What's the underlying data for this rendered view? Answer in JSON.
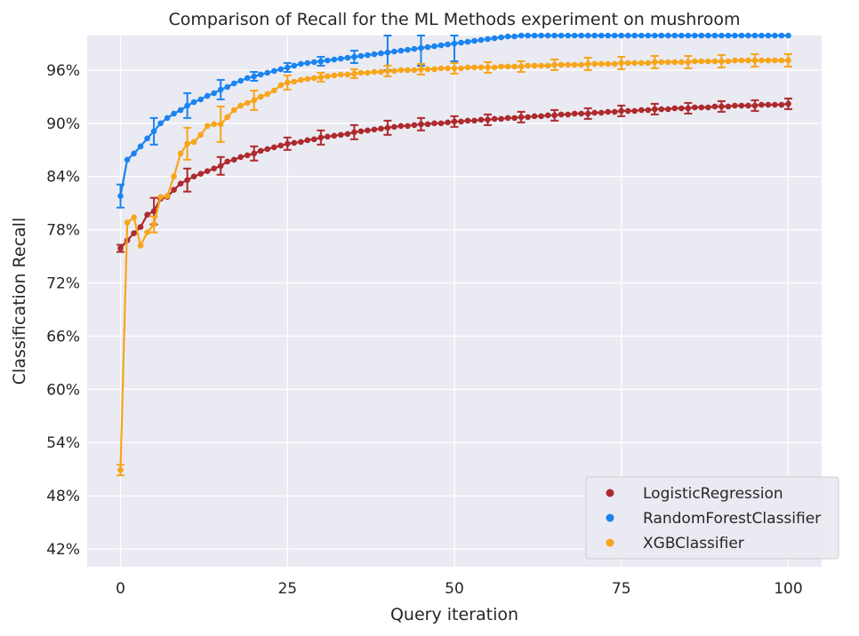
{
  "chart_data": {
    "type": "line",
    "title": "Comparison of Recall for the ML Methods experiment on mushroom",
    "xlabel": "Query iteration",
    "ylabel": "Classification Recall",
    "xlim": [
      -5,
      105
    ],
    "ylim": [
      0.4,
      0.999
    ],
    "xticks": [
      0,
      25,
      50,
      75,
      100
    ],
    "xtick_labels": [
      "0",
      "25",
      "50",
      "75",
      "100"
    ],
    "yticks": [
      0.42,
      0.48,
      0.54,
      0.6,
      0.66,
      0.72,
      0.78,
      0.84,
      0.9,
      0.96
    ],
    "ytick_labels": [
      "42%",
      "48%",
      "54%",
      "60%",
      "66%",
      "72%",
      "78%",
      "84%",
      "90%",
      "96%"
    ],
    "grid": true,
    "legend_position": "bottom-right",
    "x": [
      0,
      1,
      2,
      3,
      4,
      5,
      6,
      7,
      8,
      9,
      10,
      11,
      12,
      13,
      14,
      15,
      16,
      17,
      18,
      19,
      20,
      21,
      22,
      23,
      24,
      25,
      26,
      27,
      28,
      29,
      30,
      31,
      32,
      33,
      34,
      35,
      36,
      37,
      38,
      39,
      40,
      41,
      42,
      43,
      44,
      45,
      46,
      47,
      48,
      49,
      50,
      51,
      52,
      53,
      54,
      55,
      56,
      57,
      58,
      59,
      60,
      61,
      62,
      63,
      64,
      65,
      66,
      67,
      68,
      69,
      70,
      71,
      72,
      73,
      74,
      75,
      76,
      77,
      78,
      79,
      80,
      81,
      82,
      83,
      84,
      85,
      86,
      87,
      88,
      89,
      90,
      91,
      92,
      93,
      94,
      95,
      96,
      97,
      98,
      99,
      100
    ],
    "series": [
      {
        "name": "LogisticRegression",
        "color": "#ad2a2d",
        "values": [
          0.759,
          0.768,
          0.776,
          0.783,
          0.797,
          0.801,
          0.815,
          0.817,
          0.825,
          0.832,
          0.836,
          0.84,
          0.843,
          0.846,
          0.849,
          0.852,
          0.857,
          0.859,
          0.862,
          0.864,
          0.866,
          0.869,
          0.871,
          0.873,
          0.875,
          0.877,
          0.878,
          0.879,
          0.881,
          0.882,
          0.884,
          0.885,
          0.886,
          0.887,
          0.888,
          0.89,
          0.891,
          0.892,
          0.893,
          0.894,
          0.895,
          0.896,
          0.897,
          0.897,
          0.898,
          0.899,
          0.899,
          0.9,
          0.9,
          0.901,
          0.902,
          0.902,
          0.903,
          0.903,
          0.904,
          0.904,
          0.905,
          0.905,
          0.906,
          0.906,
          0.907,
          0.907,
          0.908,
          0.908,
          0.909,
          0.909,
          0.91,
          0.91,
          0.911,
          0.911,
          0.911,
          0.912,
          0.912,
          0.913,
          0.913,
          0.914,
          0.914,
          0.914,
          0.915,
          0.915,
          0.916,
          0.916,
          0.916,
          0.917,
          0.917,
          0.917,
          0.918,
          0.918,
          0.918,
          0.919,
          0.919,
          0.919,
          0.92,
          0.92,
          0.92,
          0.92,
          0.921,
          0.921,
          0.921,
          0.921,
          0.922
        ],
        "errors": {
          "0": 0.004,
          "5": 0.015,
          "10": 0.013,
          "15": 0.01,
          "20": 0.008,
          "25": 0.007,
          "30": 0.008,
          "35": 0.008,
          "40": 0.008,
          "45": 0.007,
          "50": 0.006,
          "55": 0.006,
          "60": 0.006,
          "65": 0.006,
          "70": 0.006,
          "75": 0.006,
          "80": 0.006,
          "85": 0.006,
          "90": 0.006,
          "95": 0.006,
          "100": 0.006
        }
      },
      {
        "name": "RandomForestClassifier",
        "color": "#1a84f0",
        "values": [
          0.818,
          0.859,
          0.866,
          0.874,
          0.883,
          0.891,
          0.9,
          0.906,
          0.911,
          0.915,
          0.92,
          0.924,
          0.927,
          0.931,
          0.934,
          0.938,
          0.941,
          0.945,
          0.948,
          0.951,
          0.953,
          0.955,
          0.957,
          0.959,
          0.961,
          0.963,
          0.965,
          0.967,
          0.968,
          0.969,
          0.97,
          0.971,
          0.972,
          0.973,
          0.974,
          0.975,
          0.976,
          0.977,
          0.978,
          0.979,
          0.98,
          0.981,
          0.982,
          0.983,
          0.984,
          0.985,
          0.986,
          0.987,
          0.988,
          0.989,
          0.99,
          0.991,
          0.992,
          0.993,
          0.994,
          0.995,
          0.996,
          0.997,
          0.998,
          0.998,
          0.999,
          0.999,
          0.999,
          0.999,
          0.999,
          0.999,
          0.999,
          0.999,
          0.999,
          0.999,
          0.999,
          0.999,
          0.999,
          0.999,
          0.999,
          0.999,
          0.999,
          0.999,
          0.999,
          0.999,
          0.999,
          0.999,
          0.999,
          0.999,
          0.999,
          0.999,
          0.999,
          0.999,
          0.999,
          0.999,
          0.999,
          0.999,
          0.999,
          0.999,
          0.999,
          0.999,
          0.999,
          0.999,
          0.999,
          0.999,
          0.999
        ],
        "errors": {
          "0": 0.013,
          "5": 0.015,
          "10": 0.014,
          "15": 0.011,
          "20": 0.005,
          "25": 0.005,
          "30": 0.005,
          "35": 0.007,
          "40": 0.02,
          "45": 0.02,
          "50": 0.02
        }
      },
      {
        "name": "XGBClassifier",
        "color": "#f7a51a",
        "values": [
          0.509,
          0.788,
          0.794,
          0.762,
          0.777,
          0.786,
          0.817,
          0.818,
          0.84,
          0.866,
          0.877,
          0.879,
          0.887,
          0.897,
          0.899,
          0.899,
          0.907,
          0.915,
          0.92,
          0.923,
          0.926,
          0.93,
          0.933,
          0.937,
          0.943,
          0.946,
          0.947,
          0.949,
          0.95,
          0.951,
          0.952,
          0.953,
          0.954,
          0.955,
          0.955,
          0.956,
          0.957,
          0.957,
          0.958,
          0.958,
          0.959,
          0.959,
          0.96,
          0.96,
          0.96,
          0.961,
          0.961,
          0.961,
          0.962,
          0.962,
          0.962,
          0.962,
          0.963,
          0.963,
          0.963,
          0.963,
          0.963,
          0.964,
          0.964,
          0.964,
          0.964,
          0.965,
          0.965,
          0.965,
          0.965,
          0.966,
          0.966,
          0.966,
          0.966,
          0.966,
          0.967,
          0.967,
          0.967,
          0.967,
          0.967,
          0.968,
          0.968,
          0.968,
          0.968,
          0.968,
          0.969,
          0.969,
          0.969,
          0.969,
          0.969,
          0.969,
          0.97,
          0.97,
          0.97,
          0.97,
          0.97,
          0.97,
          0.971,
          0.971,
          0.971,
          0.971,
          0.971,
          0.971,
          0.971,
          0.971,
          0.971
        ],
        "errors": {
          "0": 0.006,
          "5": 0.009,
          "10": 0.018,
          "15": 0.02,
          "20": 0.011,
          "25": 0.008,
          "30": 0.005,
          "35": 0.005,
          "40": 0.006,
          "45": 0.006,
          "50": 0.006,
          "55": 0.006,
          "60": 0.006,
          "65": 0.006,
          "70": 0.007,
          "75": 0.007,
          "80": 0.007,
          "85": 0.007,
          "90": 0.007,
          "95": 0.007,
          "100": 0.007
        }
      }
    ]
  }
}
